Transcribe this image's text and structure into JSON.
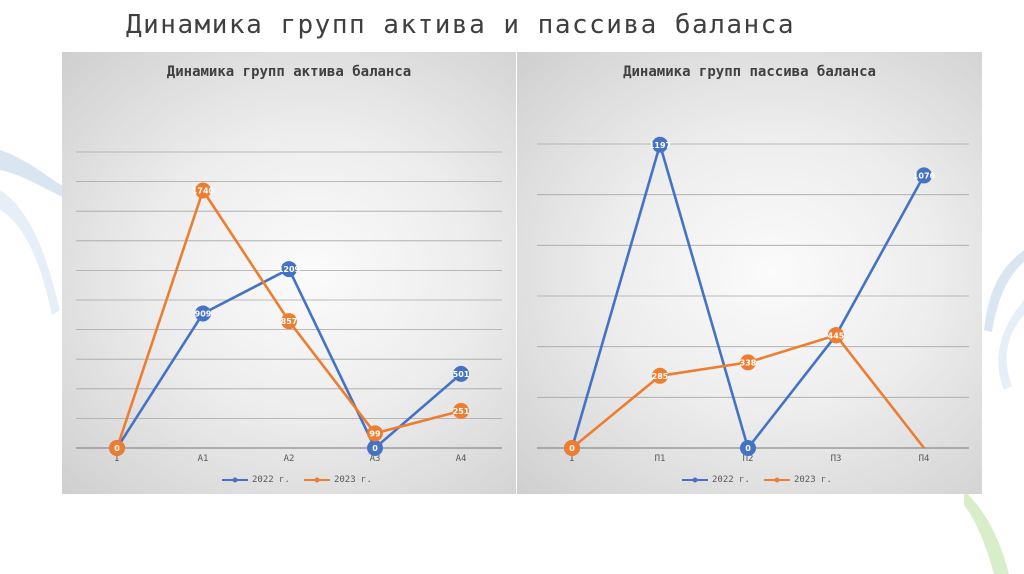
{
  "slide": {
    "title": "Динамика групп актива и пассива баланса"
  },
  "colors": {
    "series_2022": "#4472C4",
    "series_2023": "#ED7D31"
  },
  "chart_data": [
    {
      "type": "line",
      "title": "Динамика групп актива баланса",
      "x": [
        "I",
        "A1",
        "A2",
        "A3",
        "A4"
      ],
      "series": [
        {
          "name": "2022 г.",
          "values": [
            0,
            909,
            1209,
            0,
            501
          ],
          "labels": [
            "0",
            "909",
            "1209",
            "0",
            "501"
          ]
        },
        {
          "name": "2023 г.",
          "values": [
            0,
            1740,
            857,
            99,
            251
          ],
          "labels": [
            "0",
            "1740",
            "857",
            "99",
            "251"
          ]
        }
      ],
      "ylim": [
        0,
        2000
      ],
      "grid": true,
      "legend": "bottom"
    },
    {
      "type": "line",
      "title": "Динамика групп пассива баланса",
      "x": [
        "I",
        "П1",
        "П2",
        "П3",
        "П4"
      ],
      "series": [
        {
          "name": "2022 г.",
          "values": [
            0,
            1197,
            0,
            445,
            1076
          ],
          "labels": [
            "0",
            "1197",
            "0",
            "445",
            "1076"
          ]
        },
        {
          "name": "2023 г.",
          "values": [
            0,
            285,
            338,
            445,
            0
          ],
          "labels": [
            "0",
            "285",
            "338",
            "445",
            ""
          ]
        }
      ],
      "ylim": [
        0,
        1200
      ],
      "grid": true,
      "legend": "bottom"
    }
  ]
}
